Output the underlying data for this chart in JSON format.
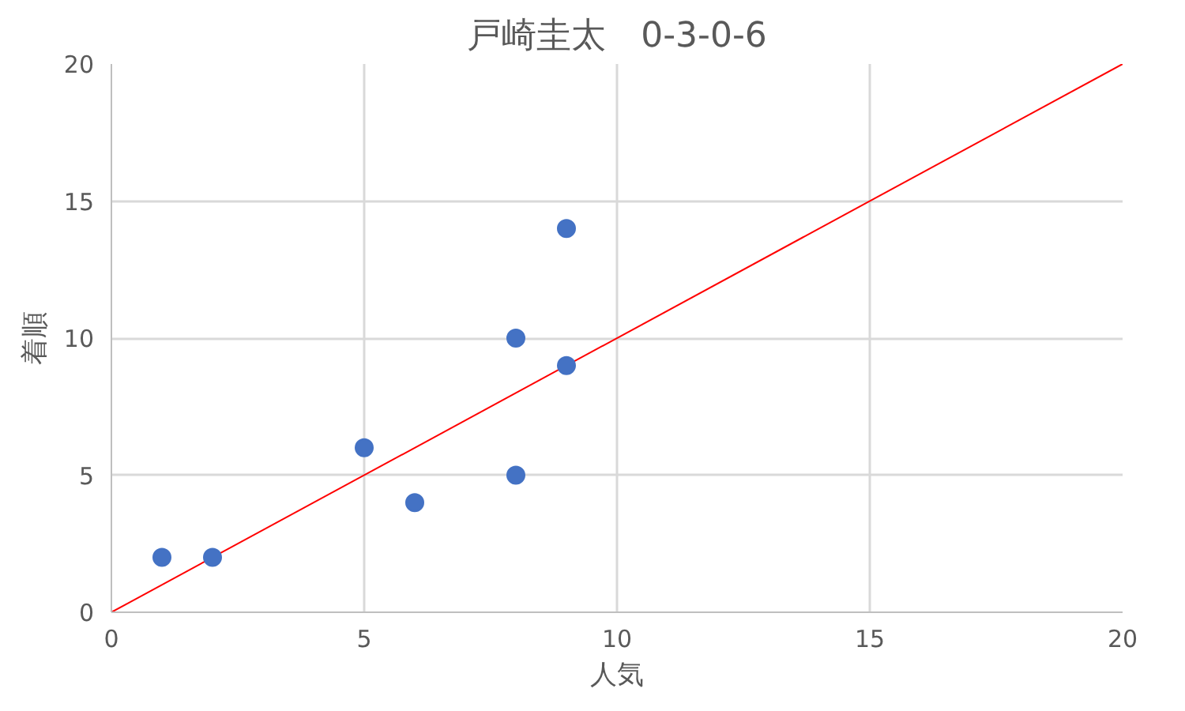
{
  "chart_data": {
    "type": "scatter",
    "title": "戸崎圭太　0-3-0-6",
    "xlabel": "人気",
    "ylabel": "着順",
    "series": [
      {
        "color": "#4472c4",
        "marker": "circle",
        "x": [
          1,
          2,
          5,
          6,
          8,
          8,
          9,
          9
        ],
        "values": [
          2,
          2,
          6,
          4,
          10,
          5,
          14,
          9
        ]
      },
      {
        "type": "line",
        "marker": "none",
        "color": "#ff0000",
        "x": [
          0,
          20
        ],
        "values": [
          0,
          20
        ]
      }
    ],
    "xlim": [
      0,
      20
    ],
    "ylim": [
      0,
      20
    ],
    "xticks": [
      0,
      5,
      10,
      15,
      20
    ],
    "yticks": [
      0,
      5,
      10,
      15,
      20
    ],
    "grid": true
  }
}
